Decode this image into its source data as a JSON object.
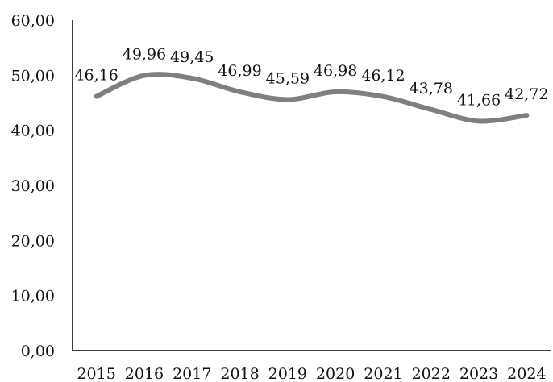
{
  "chart_data": {
    "type": "line",
    "categories": [
      "2015",
      "2016",
      "2017",
      "2018",
      "2019",
      "2020",
      "2021",
      "2022",
      "2023",
      "2024"
    ],
    "series": [
      {
        "values": [
          46.16,
          49.96,
          49.45,
          46.99,
          45.59,
          46.98,
          46.12,
          43.78,
          41.66,
          42.72
        ],
        "data_labels": [
          "46,16",
          "49,96",
          "49,45",
          "46,99",
          "45,59",
          "46,98",
          "46,12",
          "43,78",
          "41,66",
          "42,72"
        ],
        "color": "#7f7f7f"
      }
    ],
    "y_ticks": [
      0,
      10,
      20,
      30,
      40,
      50,
      60
    ],
    "y_tick_labels": [
      "0,00",
      "10,00",
      "20,00",
      "30,00",
      "40,00",
      "50,00",
      "60,00"
    ],
    "ylim": [
      0,
      60
    ],
    "grid": false,
    "legend": "none",
    "smooth": true
  }
}
